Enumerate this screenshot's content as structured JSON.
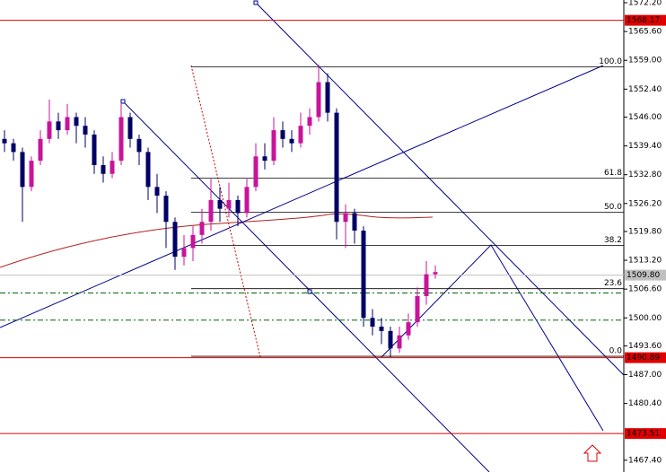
{
  "chart_data": {
    "type": "candlestick",
    "up_color": "#c8149b",
    "down_color": "#000066",
    "level_color": "#e00000",
    "price_color": "#c0c0c0",
    "fib_color": "#000000",
    "guide_color": "#006400",
    "ylim": [
      1464.7,
      1572.82
    ],
    "yticks": [
      {
        "value": 1572.2,
        "label": "1572.20"
      },
      {
        "value": 1565.6,
        "label": "1565.60"
      },
      {
        "value": 1559.0,
        "label": "1559.00"
      },
      {
        "value": 1552.4,
        "label": "1552.40"
      },
      {
        "value": 1546.0,
        "label": "1546.00"
      },
      {
        "value": 1539.4,
        "label": "1539.40"
      },
      {
        "value": 1532.8,
        "label": "1532.80"
      },
      {
        "value": 1526.2,
        "label": "1526.20"
      },
      {
        "value": 1519.8,
        "label": "1519.80"
      },
      {
        "value": 1513.2,
        "label": "1513.20"
      },
      {
        "value": 1506.6,
        "label": "1506.60"
      },
      {
        "value": 1500.0,
        "label": "1500.00"
      },
      {
        "value": 1493.6,
        "label": "1493.60"
      },
      {
        "value": 1487.0,
        "label": "1487.00"
      },
      {
        "value": 1480.4,
        "label": "1480.40"
      },
      {
        "value": 1467.4,
        "label": "1467.40"
      }
    ],
    "levels": [
      {
        "value": 1568.17,
        "label": "1568.17"
      },
      {
        "value": 1490.89,
        "label": "1490.89"
      },
      {
        "value": 1473.51,
        "label": "1473.51"
      }
    ],
    "current_price": {
      "value": 1509.8,
      "label": "1509.80"
    },
    "fib_levels": [
      {
        "value": 1557.5,
        "label": "100.0"
      },
      {
        "value": 1532.0,
        "label": "61.8"
      },
      {
        "value": 1524.2,
        "label": "50.0"
      },
      {
        "value": 1516.6,
        "label": "38.2"
      },
      {
        "value": 1506.7,
        "label": "23.6"
      },
      {
        "value": 1491.2,
        "label": "0.0"
      }
    ],
    "guide_levels": [
      1505.7,
      1499.5
    ],
    "candles": [
      [
        1541,
        1543,
        1538,
        1540
      ],
      [
        1540,
        1541,
        1536,
        1538
      ],
      [
        1538,
        1539,
        1522,
        1530
      ],
      [
        1530,
        1537,
        1529,
        1536
      ],
      [
        1536,
        1543,
        1535,
        1541
      ],
      [
        1541,
        1550,
        1540,
        1545
      ],
      [
        1545,
        1547,
        1541,
        1543
      ],
      [
        1543,
        1549,
        1542,
        1546
      ],
      [
        1546,
        1547,
        1540,
        1544
      ],
      [
        1544,
        1546,
        1539,
        1542
      ],
      [
        1542,
        1543,
        1533,
        1535
      ],
      [
        1535,
        1537,
        1531,
        1533
      ],
      [
        1533,
        1538,
        1532,
        1536
      ],
      [
        1536,
        1549,
        1535,
        1546
      ],
      [
        1546,
        1547,
        1539,
        1541
      ],
      [
        1541,
        1542,
        1535,
        1538
      ],
      [
        1538,
        1539,
        1527,
        1530
      ],
      [
        1530,
        1533,
        1524,
        1528
      ],
      [
        1528,
        1529,
        1516,
        1522
      ],
      [
        1522,
        1523,
        1511,
        1514
      ],
      [
        1514,
        1519,
        1512,
        1516
      ],
      [
        1516,
        1521,
        1513,
        1519
      ],
      [
        1519,
        1525,
        1517,
        1522
      ],
      [
        1522,
        1532,
        1520,
        1527
      ],
      [
        1527,
        1530,
        1522,
        1525
      ],
      [
        1525,
        1531,
        1523,
        1527
      ],
      [
        1527,
        1528,
        1521,
        1524
      ],
      [
        1524,
        1532,
        1523,
        1530
      ],
      [
        1530,
        1540,
        1529,
        1537
      ],
      [
        1537,
        1540,
        1534,
        1536
      ],
      [
        1536,
        1546,
        1535,
        1543
      ],
      [
        1543,
        1545,
        1539,
        1541
      ],
      [
        1541,
        1543,
        1538,
        1540
      ],
      [
        1540,
        1547,
        1539,
        1544
      ],
      [
        1544,
        1548,
        1542,
        1546
      ],
      [
        1546,
        1558,
        1545,
        1554
      ],
      [
        1554,
        1556,
        1545,
        1547
      ],
      [
        1547,
        1548,
        1518,
        1522
      ],
      [
        1522,
        1526,
        1516,
        1524
      ],
      [
        1524,
        1525,
        1517,
        1520
      ],
      [
        1520,
        1521,
        1498,
        1500
      ],
      [
        1500,
        1502,
        1496,
        1498
      ],
      [
        1498,
        1500,
        1494,
        1497
      ],
      [
        1497,
        1498,
        1491,
        1493
      ],
      [
        1493,
        1498,
        1492,
        1496
      ],
      [
        1496,
        1501,
        1495,
        1499
      ],
      [
        1499,
        1507,
        1498,
        1505
      ],
      [
        1505,
        1513,
        1503,
        1510
      ],
      [
        1510,
        1512,
        1509,
        1510.5
      ]
    ]
  }
}
